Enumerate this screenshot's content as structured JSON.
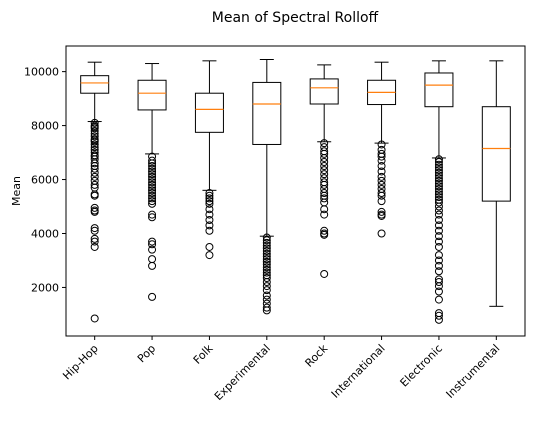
{
  "chart_data": {
    "type": "boxplot",
    "title": "Mean of Spectral Rolloff",
    "xlabel": "",
    "ylabel": "Mean",
    "ylim": [
      200,
      10950
    ],
    "yticks": [
      2000,
      4000,
      6000,
      8000,
      10000
    ],
    "ytick_labels": [
      "2000",
      "4000",
      "6000",
      "8000",
      "10000"
    ],
    "grid": false,
    "legend": "none",
    "colors": {
      "box": "#000000",
      "median": "#ff7f0e",
      "flier": "#000000"
    },
    "categories": [
      "Hip-Hop",
      "Pop",
      "Folk",
      "Experimental",
      "Rock",
      "International",
      "Electronic",
      "Instrumental"
    ],
    "series": [
      {
        "name": "Hip-Hop",
        "whisker_low": 8150,
        "q1": 9200,
        "median": 9580,
        "q3": 9850,
        "whisker_high": 10350,
        "outliers": [
          8100,
          8000,
          7950,
          7900,
          7800,
          7700,
          7600,
          7500,
          7450,
          7400,
          7300,
          7200,
          7100,
          7000,
          6900,
          6850,
          6750,
          6600,
          6500,
          6400,
          6250,
          6100,
          5950,
          5800,
          5700,
          5450,
          5400,
          4950,
          4850,
          4800,
          4200,
          4100,
          3800,
          3700,
          3500,
          850
        ]
      },
      {
        "name": "Pop",
        "whisker_low": 6950,
        "q1": 8580,
        "median": 9200,
        "q3": 9680,
        "whisker_high": 10300,
        "outliers": [
          6850,
          6700,
          6600,
          6500,
          6400,
          6300,
          6200,
          6100,
          6000,
          5900,
          5800,
          5700,
          5600,
          5500,
          5400,
          5300,
          5200,
          5100,
          4700,
          4600,
          3700,
          3600,
          3400,
          3050,
          2800,
          1650
        ]
      },
      {
        "name": "Folk",
        "whisker_low": 5600,
        "q1": 7750,
        "median": 8600,
        "q3": 9200,
        "whisker_high": 10400,
        "outliers": [
          5500,
          5400,
          5300,
          5200,
          5100,
          4900,
          4700,
          4500,
          4300,
          4100,
          3500,
          3200
        ]
      },
      {
        "name": "Experimental",
        "whisker_low": 3900,
        "q1": 7300,
        "median": 8800,
        "q3": 9600,
        "whisker_high": 10450,
        "outliers": [
          3850,
          3750,
          3650,
          3550,
          3450,
          3350,
          3250,
          3150,
          3050,
          2950,
          2850,
          2750,
          2650,
          2550,
          2450,
          2350,
          2200,
          2050,
          1900,
          1700,
          1550,
          1400,
          1250,
          1150
        ]
      },
      {
        "name": "Rock",
        "whisker_low": 7400,
        "q1": 8800,
        "median": 9400,
        "q3": 9730,
        "whisker_high": 10250,
        "outliers": [
          7350,
          7200,
          7050,
          6950,
          6800,
          6650,
          6500,
          6350,
          6200,
          6050,
          5900,
          5800,
          5650,
          5500,
          5400,
          5300,
          5150,
          4900,
          4700,
          4100,
          4000,
          3950,
          2500
        ]
      },
      {
        "name": "International",
        "whisker_low": 7350,
        "q1": 8780,
        "median": 9230,
        "q3": 9680,
        "whisker_high": 10350,
        "outliers": [
          7300,
          7100,
          6950,
          6850,
          6700,
          6500,
          6300,
          6100,
          5950,
          5800,
          5650,
          5500,
          5400,
          5200,
          4800,
          4700,
          4650,
          4000
        ]
      },
      {
        "name": "Electronic",
        "whisker_low": 6800,
        "q1": 8700,
        "median": 9500,
        "q3": 9950,
        "whisker_high": 10400,
        "outliers": [
          6750,
          6650,
          6550,
          6450,
          6350,
          6250,
          6150,
          6050,
          5950,
          5850,
          5750,
          5650,
          5550,
          5450,
          5350,
          5250,
          5150,
          5000,
          4850,
          4700,
          4500,
          4300,
          4100,
          3900,
          3700,
          3500,
          3200,
          3000,
          2800,
          2600,
          2300,
          2200,
          2050,
          1850,
          1550,
          1050,
          950,
          800
        ]
      },
      {
        "name": "Instrumental",
        "whisker_low": 1300,
        "q1": 5200,
        "median": 7150,
        "q3": 8700,
        "whisker_high": 10400,
        "outliers": []
      }
    ]
  }
}
